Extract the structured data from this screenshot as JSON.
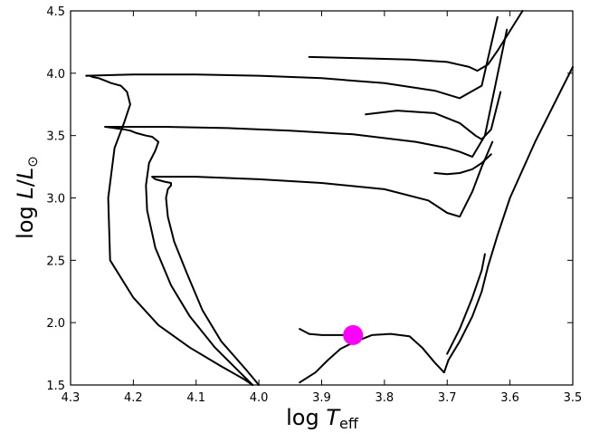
{
  "chart_data": {
    "type": "line",
    "title": "",
    "xlabel_main": "log ",
    "xlabel_var": "T",
    "xlabel_sub": "eff",
    "ylabel_main": "log ",
    "ylabel_var": "L",
    "ylabel_sep": "/",
    "ylabel_var2": "L",
    "ylabel_sub": "⊙",
    "xlim": [
      4.3,
      3.5
    ],
    "ylim": [
      1.5,
      4.5
    ],
    "x_reversed": true,
    "xticks": [
      4.3,
      4.2,
      4.1,
      4.0,
      3.9,
      3.8,
      3.7,
      3.6,
      3.5
    ],
    "xtick_labels": [
      "4.3",
      "4.2",
      "4.1",
      "4.0",
      "3.9",
      "3.8",
      "3.7",
      "3.6",
      "3.5"
    ],
    "yticks": [
      1.5,
      2.0,
      2.5,
      3.0,
      3.5,
      4.0,
      4.5
    ],
    "ytick_labels": [
      "1.5",
      "2.0",
      "2.5",
      "3.0",
      "3.5",
      "4.0",
      "4.5"
    ],
    "grid": false,
    "series": [
      {
        "x": [
          4.01,
          4.025,
          4.06,
          4.11,
          4.16,
          4.2,
          4.237,
          4.24,
          4.23,
          4.215,
          4.205,
          4.21,
          4.22,
          4.235,
          4.245,
          4.255,
          4.265,
          4.27,
          4.275
        ],
        "y": [
          1.5,
          1.55,
          1.65,
          1.8,
          1.98,
          2.2,
          2.5,
          3.0,
          3.4,
          3.6,
          3.75,
          3.85,
          3.9,
          3.92,
          3.94,
          3.96,
          3.97,
          3.98,
          3.98
        ],
        "color": "#000000"
      },
      {
        "x": [
          4.275,
          4.2,
          4.1,
          4.0,
          3.9,
          3.8,
          3.72,
          3.68,
          3.645,
          3.62
        ],
        "y": [
          3.98,
          3.99,
          3.99,
          3.98,
          3.96,
          3.92,
          3.86,
          3.8,
          3.9,
          4.45
        ],
        "color": "#000000"
      },
      {
        "x": [
          3.92,
          3.84,
          3.76,
          3.7,
          3.665,
          3.652,
          3.635,
          3.62,
          3.58
        ],
        "y": [
          4.13,
          4.12,
          4.11,
          4.09,
          4.05,
          4.02,
          4.07,
          4.18,
          4.5
        ],
        "color": "#000000"
      },
      {
        "x": [
          4.01,
          4.03,
          4.07,
          4.11,
          4.14,
          4.165,
          4.178,
          4.18,
          4.175,
          4.165,
          4.16,
          4.17,
          4.18,
          4.195,
          4.205,
          4.215,
          4.23,
          4.245
        ],
        "y": [
          1.5,
          1.6,
          1.8,
          2.05,
          2.3,
          2.6,
          2.9,
          3.1,
          3.28,
          3.38,
          3.45,
          3.49,
          3.5,
          3.52,
          3.54,
          3.55,
          3.56,
          3.57
        ],
        "color": "#000000"
      },
      {
        "x": [
          4.245,
          4.15,
          4.05,
          3.95,
          3.85,
          3.75,
          3.7,
          3.68,
          3.66,
          3.64,
          3.605
        ],
        "y": [
          3.57,
          3.57,
          3.56,
          3.54,
          3.51,
          3.45,
          3.4,
          3.37,
          3.33,
          3.5,
          4.35
        ],
        "color": "#000000"
      },
      {
        "x": [
          3.83,
          3.78,
          3.72,
          3.68,
          3.655,
          3.645,
          3.63,
          3.615
        ],
        "y": [
          3.67,
          3.7,
          3.68,
          3.6,
          3.5,
          3.47,
          3.55,
          3.85
        ],
        "color": "#000000"
      },
      {
        "x": [
          4.0,
          4.02,
          4.06,
          4.09,
          4.115,
          4.135,
          4.145,
          4.148,
          4.145,
          4.14,
          4.14,
          4.15,
          4.165,
          4.17
        ],
        "y": [
          1.5,
          1.62,
          1.85,
          2.1,
          2.4,
          2.65,
          2.85,
          3.0,
          3.07,
          3.1,
          3.12,
          3.13,
          3.15,
          3.17
        ],
        "color": "#000000"
      },
      {
        "x": [
          4.17,
          4.1,
          4.0,
          3.9,
          3.8,
          3.73,
          3.7,
          3.68,
          3.66,
          3.645,
          3.628
        ],
        "y": [
          3.17,
          3.17,
          3.15,
          3.12,
          3.07,
          2.98,
          2.88,
          2.85,
          3.05,
          3.25,
          3.45
        ],
        "color": "#000000"
      },
      {
        "x": [
          3.72,
          3.7,
          3.68,
          3.66,
          3.645,
          3.63
        ],
        "y": [
          3.2,
          3.19,
          3.2,
          3.23,
          3.28,
          3.35
        ],
        "color": "#000000"
      },
      {
        "x": [
          3.935,
          3.91,
          3.89,
          3.87,
          3.85,
          3.82,
          3.79,
          3.76,
          3.74,
          3.72,
          3.705,
          3.698
        ],
        "y": [
          1.52,
          1.6,
          1.7,
          1.79,
          1.84,
          1.9,
          1.91,
          1.89,
          1.8,
          1.68,
          1.6,
          1.7
        ],
        "color": "#000000"
      },
      {
        "x": [
          3.935,
          3.92,
          3.9,
          3.87,
          3.85
        ],
        "y": [
          1.95,
          1.91,
          1.9,
          1.9,
          1.9
        ],
        "color": "#000000"
      },
      {
        "x": [
          3.698,
          3.68,
          3.66,
          3.645,
          3.635,
          3.62,
          3.6,
          3.56,
          3.52,
          3.5
        ],
        "y": [
          1.7,
          1.85,
          2.05,
          2.25,
          2.45,
          2.7,
          3.0,
          3.45,
          3.85,
          4.05
        ],
        "color": "#000000"
      },
      {
        "x": [
          3.7,
          3.68,
          3.66,
          3.645,
          3.64
        ],
        "y": [
          1.75,
          1.95,
          2.2,
          2.42,
          2.55
        ],
        "color": "#000000"
      }
    ],
    "highlight_point": {
      "x": 3.85,
      "y": 1.9,
      "color": "#ff00ff"
    }
  }
}
